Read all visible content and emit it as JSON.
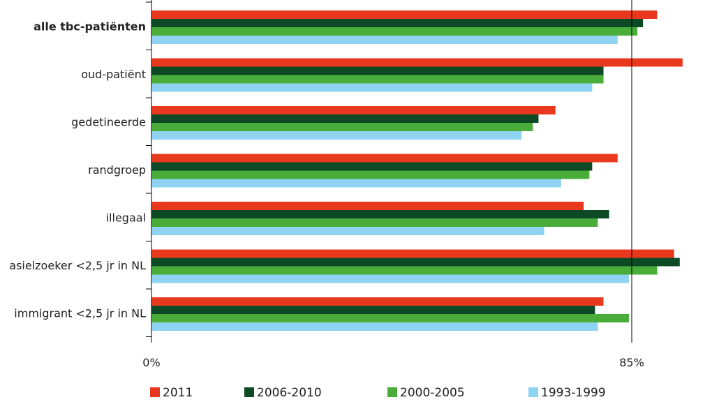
{
  "chart_data": {
    "type": "bar",
    "orientation": "horizontal",
    "categories": [
      "alle tbc-patiënten",
      "oud-patiënt",
      "gedetineerde",
      "randgroep",
      "illegaal",
      "asielzoeker <2,5 jr in NL",
      "immigrant <2,5 jr in NL"
    ],
    "bold_categories": [
      "alle tbc-patiënten"
    ],
    "series": [
      {
        "name": "2011",
        "color": "#e8391e",
        "values": [
          89.5,
          94.0,
          71.5,
          82.5,
          76.5,
          92.5,
          80.0
        ]
      },
      {
        "name": "2006-2010",
        "color": "#0c4a26",
        "values": [
          87.0,
          80.0,
          68.5,
          78.0,
          81.0,
          93.5,
          78.5
        ]
      },
      {
        "name": "2000-2005",
        "color": "#4aad3a",
        "values": [
          86.0,
          80.0,
          67.5,
          77.5,
          79.0,
          89.5,
          84.5
        ]
      },
      {
        "name": "1993-1999",
        "color": "#8fd3f2",
        "values": [
          82.5,
          78.0,
          65.5,
          72.5,
          69.5,
          84.5,
          79.0
        ]
      }
    ],
    "xlim": [
      0,
      100
    ],
    "tick_values": [
      0,
      85
    ],
    "tick_labels": [
      "0%",
      "85%"
    ],
    "reference_line": 85,
    "legend_position": "bottom",
    "xlabel": "",
    "ylabel": ""
  }
}
